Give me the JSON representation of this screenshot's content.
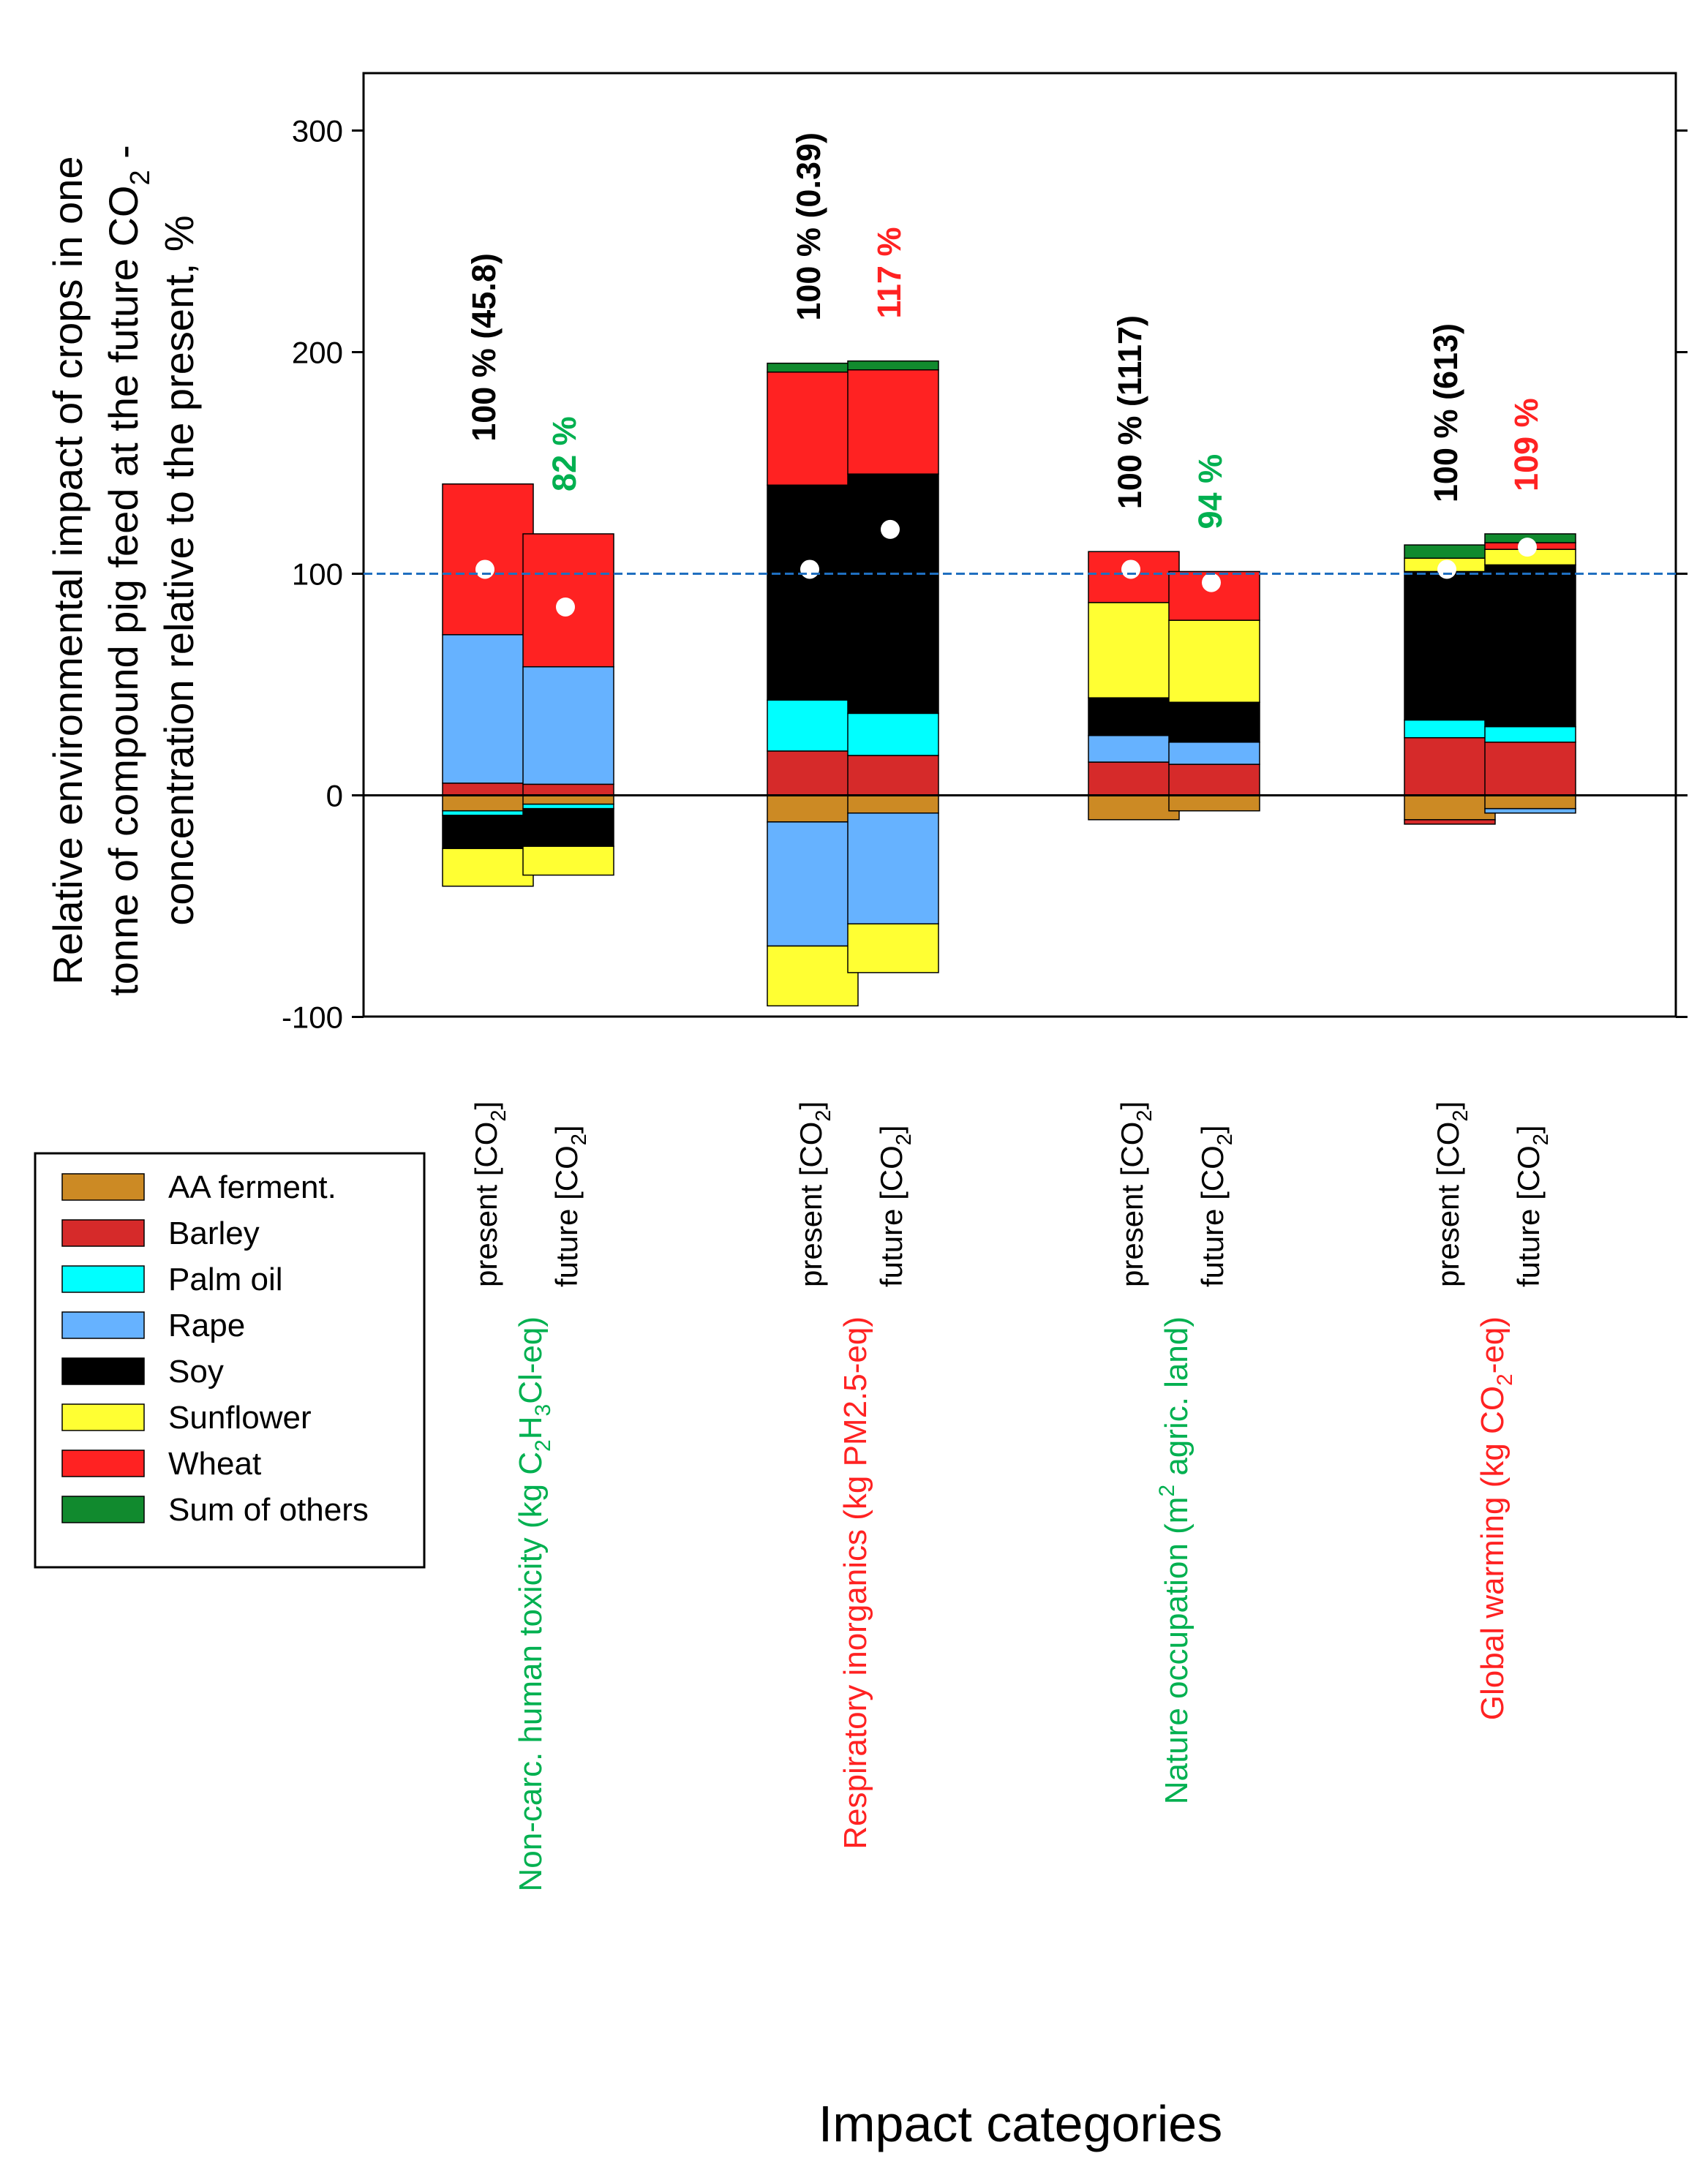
{
  "chart_data": {
    "type": "bar",
    "stacked": true,
    "ylabel_lines": [
      [
        "Relative environmental impact of crops in one"
      ],
      [
        "tonne of compound pig feed at the future CO",
        {
          "sub": "2"
        },
        " -"
      ],
      [
        "concentration relative to the present, %"
      ]
    ],
    "xlabel": "Impact categories",
    "ylim": [
      -100,
      330
    ],
    "yticks": [
      -100,
      0,
      100,
      200,
      300
    ],
    "reference_line": 100,
    "grid": false,
    "legend_position": "left-middle",
    "colors": {
      "AA ferment.": "#CC8A24",
      "Barley": "#D62A2A",
      "Palm oil": "#00FFFF",
      "Rape": "#66B2FF",
      "Soy": "#000000",
      "Sunflower": "#FFFF33",
      "Wheat": "#FF2222",
      "Sum of others": "#118A2E",
      "refline": "#1F6FC0",
      "green_text": "#00B050",
      "red_text": "#FF2222"
    },
    "legend": [
      "AA ferment.",
      "Barley",
      "Palm oil",
      "Rape",
      "Soy",
      "Sunflower",
      "Wheat",
      "Sum of others"
    ],
    "categories": [
      {
        "name_parts": [
          "Non-carc. human toxicity (kg C",
          {
            "sub": "2"
          },
          "H",
          {
            "sub": "3"
          },
          "Cl-eq)"
        ],
        "name_color": "green",
        "bars": [
          {
            "label": "present [CO2]",
            "dot": 102,
            "annotation": "100 % (45.8)",
            "annotation_color": "black",
            "positive": [
              [
                "Barley",
                5.5
              ],
              [
                "Rape",
                67
              ],
              [
                "Wheat",
                68
              ]
            ],
            "negative": [
              [
                "AA ferment.",
                -7
              ],
              [
                "Palm oil",
                -2
              ],
              [
                "Soy",
                -15
              ],
              [
                "Sunflower",
                -17
              ]
            ]
          },
          {
            "label": "future [CO2]",
            "dot": 85,
            "annotation": "82 %",
            "annotation_color": "green",
            "positive": [
              [
                "Barley",
                5
              ],
              [
                "Rape",
                53
              ],
              [
                "Wheat",
                60
              ]
            ],
            "negative": [
              [
                "AA ferment.",
                -4
              ],
              [
                "Palm oil",
                -2
              ],
              [
                "Soy",
                -17
              ],
              [
                "Sunflower",
                -13
              ]
            ]
          }
        ]
      },
      {
        "name_parts": [
          "Respiratory inorganics (kg PM2.5-eq)"
        ],
        "name_color": "red",
        "bars": [
          {
            "label": "present [CO2]",
            "dot": 102,
            "annotation": "100 % (0.39)",
            "annotation_color": "black",
            "positive": [
              [
                "Barley",
                20
              ],
              [
                "Palm oil",
                23
              ],
              [
                "Soy",
                97
              ],
              [
                "Wheat",
                51
              ],
              [
                "Sum of others",
                4
              ]
            ],
            "negative": [
              [
                "AA ferment.",
                -12
              ],
              [
                "Rape",
                -56
              ],
              [
                "Sunflower",
                -27
              ]
            ]
          },
          {
            "label": "future [CO2]",
            "dot": 120,
            "annotation": "117 %",
            "annotation_color": "red",
            "positive": [
              [
                "Barley",
                18
              ],
              [
                "Palm oil",
                19
              ],
              [
                "Soy",
                108
              ],
              [
                "Wheat",
                47
              ],
              [
                "Sum of others",
                4
              ]
            ],
            "negative": [
              [
                "AA ferment.",
                -8
              ],
              [
                "Rape",
                -50
              ],
              [
                "Sunflower",
                -22
              ]
            ]
          }
        ]
      },
      {
        "name_parts": [
          "Nature occupation (m",
          {
            "sup": "2"
          },
          " agric. land)"
        ],
        "name_color": "green",
        "bars": [
          {
            "label": "present [CO2]",
            "dot": 102,
            "annotation": "100 % (1117)",
            "annotation_color": "black",
            "positive": [
              [
                "Barley",
                15
              ],
              [
                "Rape",
                12
              ],
              [
                "Soy",
                17
              ],
              [
                "Sunflower",
                43
              ],
              [
                "Wheat",
                23
              ]
            ],
            "negative": [
              [
                "AA ferment.",
                -11
              ]
            ]
          },
          {
            "label": "future [CO2]",
            "dot": 96,
            "annotation": "94 %",
            "annotation_color": "green",
            "positive": [
              [
                "Barley",
                14
              ],
              [
                "Rape",
                10
              ],
              [
                "Soy",
                18
              ],
              [
                "Sunflower",
                37
              ],
              [
                "Wheat",
                22
              ]
            ],
            "negative": [
              [
                "AA ferment.",
                -7
              ]
            ]
          }
        ]
      },
      {
        "name_parts": [
          "Global warming (kg CO",
          {
            "sub": "2"
          },
          "-eq)"
        ],
        "name_color": "red",
        "bars": [
          {
            "label": "present [CO2]",
            "dot": 102,
            "annotation": "100 % (613)",
            "annotation_color": "black",
            "positive": [
              [
                "Barley",
                26
              ],
              [
                "Palm oil",
                8
              ],
              [
                "Soy",
                67
              ],
              [
                "Sunflower",
                6
              ],
              [
                "Sum of others",
                6
              ]
            ],
            "negative": [
              [
                "AA ferment.",
                -11
              ],
              [
                "Barley",
                -2
              ]
            ]
          },
          {
            "label": "future [CO2]",
            "dot": 112,
            "annotation": "109 %",
            "annotation_color": "red",
            "positive": [
              [
                "Barley",
                24
              ],
              [
                "Palm oil",
                7
              ],
              [
                "Soy",
                73
              ],
              [
                "Sunflower",
                7
              ],
              [
                "Wheat",
                3
              ],
              [
                "Sum of others",
                4
              ]
            ],
            "negative": [
              [
                "AA ferment.",
                -6
              ],
              [
                "Rape",
                -2
              ]
            ]
          }
        ]
      }
    ]
  }
}
